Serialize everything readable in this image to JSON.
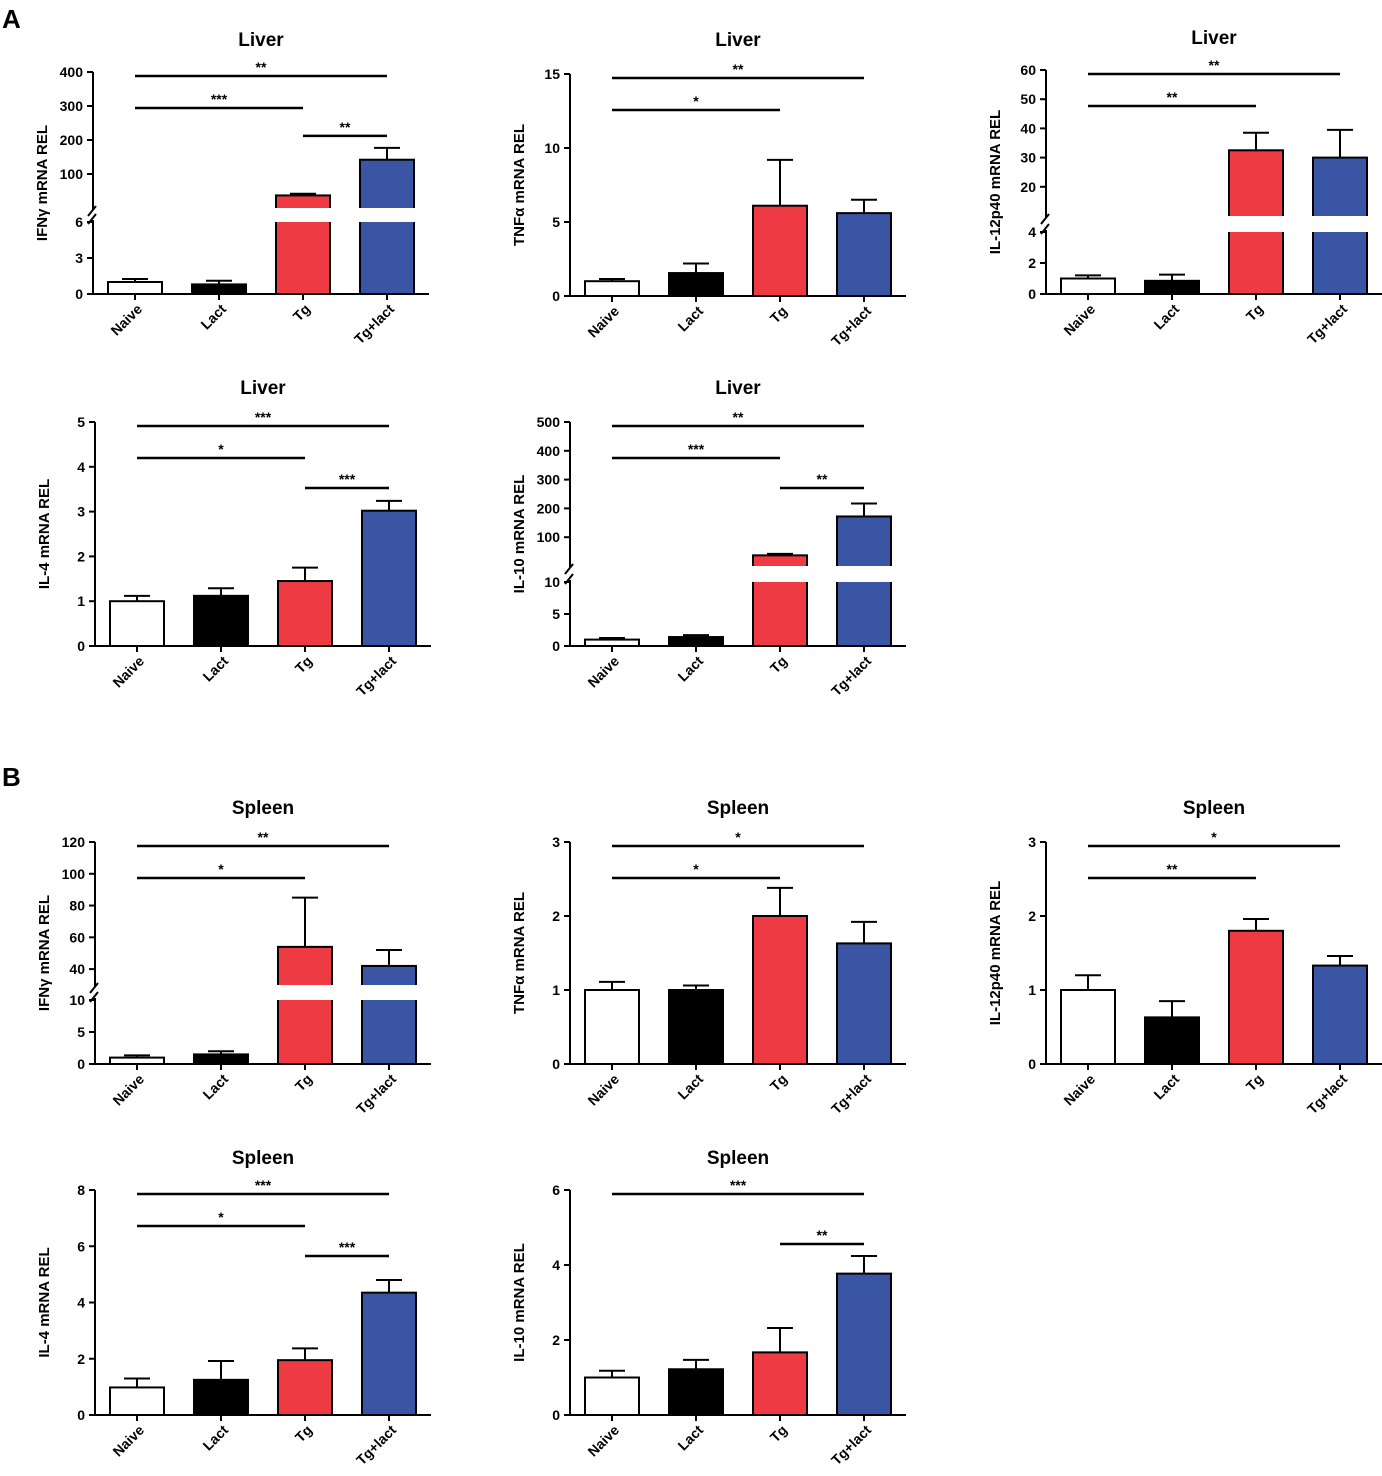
{
  "panels": [
    {
      "letter": "A"
    },
    {
      "letter": "B"
    }
  ],
  "colors": {
    "Naive": "#ffffff",
    "Lact": "#000000",
    "Tg": "#ee3a43",
    "Tg+lact": "#3a55a4"
  },
  "chart_data": [
    {
      "type": "bar",
      "panel": "A",
      "title": "Liver",
      "ylabel": "IFNγ mRNA REL",
      "categories": [
        "Naive",
        "Lact",
        "Tg",
        "Tg+lact"
      ],
      "values": [
        1,
        0.8,
        37,
        142
      ],
      "errors": [
        0.25,
        0.3,
        5,
        35
      ],
      "y_axis": "broken",
      "lower_ticks": [
        "0",
        "3",
        "6"
      ],
      "upper_ticks": [
        "100",
        "200",
        "300",
        "400"
      ],
      "lower_range": [
        0,
        6
      ],
      "upper_range": [
        0,
        400
      ],
      "significance": [
        {
          "from": 0,
          "to": 2,
          "label": "***"
        },
        {
          "from": 0,
          "to": 3,
          "label": "**"
        },
        {
          "from": 2,
          "to": 3,
          "label": "**"
        }
      ]
    },
    {
      "type": "bar",
      "panel": "A",
      "title": "Liver",
      "ylabel": "TNFα mRNA REL",
      "categories": [
        "Naive",
        "Lact",
        "Tg",
        "Tg+lact"
      ],
      "values": [
        1,
        1.55,
        6.1,
        5.6
      ],
      "errors": [
        0.15,
        0.65,
        3.1,
        0.9
      ],
      "y_axis": "linear",
      "ticks": [
        "0",
        "5",
        "10",
        "15"
      ],
      "ylim": [
        0,
        15
      ],
      "significance": [
        {
          "from": 0,
          "to": 2,
          "label": "*"
        },
        {
          "from": 0,
          "to": 3,
          "label": "**"
        }
      ]
    },
    {
      "type": "bar",
      "panel": "A",
      "title": "Liver",
      "ylabel": "IL-12p40 mRNA REL",
      "categories": [
        "Naive",
        "Lact",
        "Tg",
        "Tg+lact"
      ],
      "values": [
        1,
        0.85,
        32.5,
        30
      ],
      "errors": [
        0.2,
        0.4,
        6,
        9.5
      ],
      "y_axis": "broken",
      "lower_ticks": [
        "0",
        "2",
        "4"
      ],
      "upper_ticks": [
        "20",
        "30",
        "40",
        "50",
        "60"
      ],
      "lower_range": [
        0,
        4
      ],
      "upper_range": [
        10,
        60
      ],
      "significance": [
        {
          "from": 0,
          "to": 2,
          "label": "**"
        },
        {
          "from": 0,
          "to": 3,
          "label": "**"
        }
      ]
    },
    {
      "type": "bar",
      "panel": "A",
      "title": "Liver",
      "ylabel": "IL-4 mRNA REL",
      "categories": [
        "Naive",
        "Lact",
        "Tg",
        "Tg+lact"
      ],
      "values": [
        1,
        1.12,
        1.45,
        3.02
      ],
      "errors": [
        0.12,
        0.17,
        0.3,
        0.22
      ],
      "y_axis": "linear",
      "ticks": [
        "0",
        "1",
        "2",
        "3",
        "4",
        "5"
      ],
      "ylim": [
        0,
        5
      ],
      "significance": [
        {
          "from": 0,
          "to": 2,
          "label": "*"
        },
        {
          "from": 0,
          "to": 3,
          "label": "***"
        },
        {
          "from": 2,
          "to": 3,
          "label": "***"
        }
      ]
    },
    {
      "type": "bar",
      "panel": "A",
      "title": "Liver",
      "ylabel": "IL-10 mRNA REL",
      "categories": [
        "Naive",
        "Lact",
        "Tg",
        "Tg+lact"
      ],
      "values": [
        1,
        1.4,
        37,
        172
      ],
      "errors": [
        0.25,
        0.3,
        5,
        45
      ],
      "y_axis": "broken",
      "lower_ticks": [
        "0",
        "5",
        "10"
      ],
      "upper_ticks": [
        "100",
        "200",
        "300",
        "400",
        "500"
      ],
      "lower_range": [
        0,
        10
      ],
      "upper_range": [
        0,
        500
      ],
      "significance": [
        {
          "from": 0,
          "to": 2,
          "label": "***"
        },
        {
          "from": 0,
          "to": 3,
          "label": "**"
        },
        {
          "from": 2,
          "to": 3,
          "label": "**"
        }
      ]
    },
    {
      "type": "bar",
      "panel": "B",
      "title": "Spleen",
      "ylabel": "IFNγ mRNA REL",
      "categories": [
        "Naive",
        "Lact",
        "Tg",
        "Tg+lact"
      ],
      "values": [
        1,
        1.5,
        54,
        42
      ],
      "errors": [
        0.35,
        0.5,
        31,
        10
      ],
      "y_axis": "broken",
      "lower_ticks": [
        "0",
        "5",
        "10"
      ],
      "upper_ticks": [
        "40",
        "60",
        "80",
        "100",
        "120"
      ],
      "lower_range": [
        0,
        10
      ],
      "upper_range": [
        30,
        120
      ],
      "significance": [
        {
          "from": 0,
          "to": 2,
          "label": "*"
        },
        {
          "from": 0,
          "to": 3,
          "label": "**"
        }
      ]
    },
    {
      "type": "bar",
      "panel": "B",
      "title": "Spleen",
      "ylabel": "TNFα mRNA REL",
      "categories": [
        "Naive",
        "Lact",
        "Tg",
        "Tg+lact"
      ],
      "values": [
        1,
        1,
        2,
        1.63
      ],
      "errors": [
        0.11,
        0.06,
        0.38,
        0.29
      ],
      "y_axis": "linear",
      "ticks": [
        "0",
        "1",
        "2",
        "3"
      ],
      "ylim": [
        0,
        3
      ],
      "significance": [
        {
          "from": 0,
          "to": 2,
          "label": "*"
        },
        {
          "from": 0,
          "to": 3,
          "label": "*"
        }
      ]
    },
    {
      "type": "bar",
      "panel": "B",
      "title": "Spleen",
      "ylabel": "IL-12p40 mRNA REL",
      "categories": [
        "Naive",
        "Lact",
        "Tg",
        "Tg+lact"
      ],
      "values": [
        1,
        0.63,
        1.8,
        1.33
      ],
      "errors": [
        0.2,
        0.22,
        0.16,
        0.13
      ],
      "y_axis": "linear",
      "ticks": [
        "0",
        "1",
        "2",
        "3"
      ],
      "ylim": [
        0,
        3
      ],
      "significance": [
        {
          "from": 0,
          "to": 2,
          "label": "**"
        },
        {
          "from": 0,
          "to": 3,
          "label": "*"
        }
      ]
    },
    {
      "type": "bar",
      "panel": "B",
      "title": "Spleen",
      "ylabel": "IL-4 mRNA REL",
      "categories": [
        "Naive",
        "Lact",
        "Tg",
        "Tg+lact"
      ],
      "values": [
        0.98,
        1.25,
        1.95,
        4.35
      ],
      "errors": [
        0.32,
        0.67,
        0.42,
        0.45
      ],
      "y_axis": "linear",
      "ticks": [
        "0",
        "2",
        "4",
        "6",
        "8"
      ],
      "ylim": [
        0,
        8
      ],
      "significance": [
        {
          "from": 0,
          "to": 2,
          "label": "*"
        },
        {
          "from": 0,
          "to": 3,
          "label": "***"
        },
        {
          "from": 2,
          "to": 3,
          "label": "***"
        }
      ]
    },
    {
      "type": "bar",
      "panel": "B",
      "title": "Spleen",
      "ylabel": "IL-10 mRNA REL",
      "categories": [
        "Naive",
        "Lact",
        "Tg",
        "Tg+lact"
      ],
      "values": [
        1,
        1.22,
        1.67,
        3.77
      ],
      "errors": [
        0.18,
        0.25,
        0.65,
        0.47
      ],
      "y_axis": "linear",
      "ticks": [
        "0",
        "2",
        "4",
        "6"
      ],
      "ylim": [
        0,
        6
      ],
      "significance": [
        {
          "from": 0,
          "to": 3,
          "label": "***"
        },
        {
          "from": 2,
          "to": 3,
          "label": "**"
        }
      ]
    }
  ]
}
